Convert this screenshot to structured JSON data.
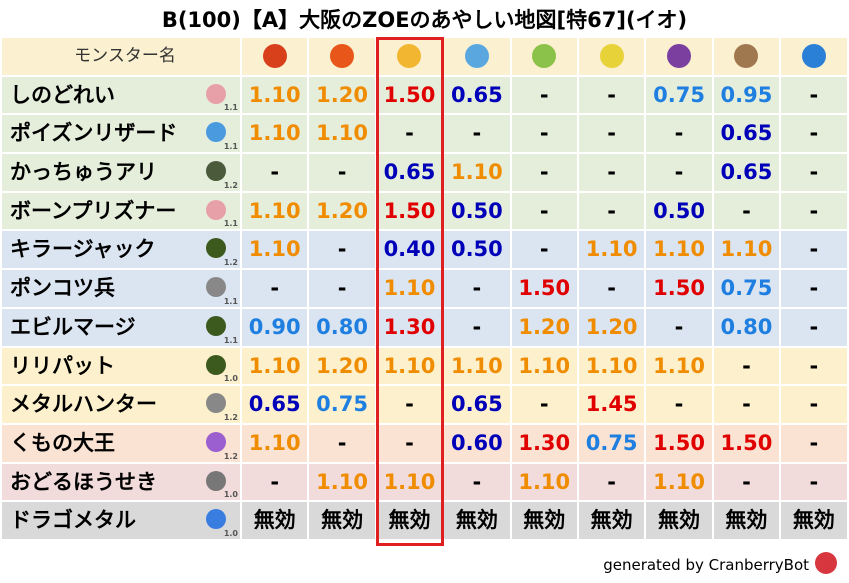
{
  "title": "B(100)【A】大阪のZOEのあやしい地図[特67](イオ)",
  "table": {
    "header": "モンスター名",
    "rows": [
      {
        "name": "しのどれい",
        "level": "1.1",
        "cells": [
          "1.10",
          "1.20",
          "1.50",
          "0.65",
          "-",
          "-",
          "0.75",
          "0.95",
          "-"
        ]
      },
      {
        "name": "ポイズンリザード",
        "level": "1.1",
        "cells": [
          "1.10",
          "1.10",
          "-",
          "-",
          "-",
          "-",
          "-",
          "0.65",
          "-"
        ]
      },
      {
        "name": "かっちゅうアリ",
        "level": "1.2",
        "cells": [
          "-",
          "-",
          "0.65",
          "1.10",
          "-",
          "-",
          "-",
          "0.65",
          "-"
        ]
      },
      {
        "name": "ボーンプリズナー",
        "level": "1.1",
        "cells": [
          "1.10",
          "1.20",
          "1.50",
          "0.50",
          "-",
          "-",
          "0.50",
          "-",
          "-"
        ]
      },
      {
        "name": "キラージャック",
        "level": "1.2",
        "cells": [
          "1.10",
          "-",
          "0.40",
          "0.50",
          "-",
          "1.10",
          "1.10",
          "1.10",
          "-"
        ]
      },
      {
        "name": "ポンコツ兵",
        "level": "1.1",
        "cells": [
          "-",
          "-",
          "1.10",
          "-",
          "1.50",
          "-",
          "1.50",
          "0.75",
          "-"
        ]
      },
      {
        "name": "エビルマージ",
        "level": "1.1",
        "cells": [
          "0.90",
          "0.80",
          "1.30",
          "-",
          "1.20",
          "1.20",
          "-",
          "0.80",
          "-"
        ]
      },
      {
        "name": "リリパット",
        "level": "1.0",
        "cells": [
          "1.10",
          "1.20",
          "1.10",
          "1.10",
          "1.10",
          "1.10",
          "1.10",
          "-",
          "-"
        ]
      },
      {
        "name": "メタルハンター",
        "level": "1.2",
        "cells": [
          "0.65",
          "0.75",
          "-",
          "0.65",
          "-",
          "1.45",
          "-",
          "-",
          "-"
        ]
      },
      {
        "name": "くもの大王",
        "level": "1.2",
        "cells": [
          "1.10",
          "-",
          "-",
          "0.60",
          "1.30",
          "0.75",
          "1.50",
          "1.50",
          "-"
        ]
      },
      {
        "name": "おどるほうせき",
        "level": "1.0",
        "cells": [
          "-",
          "1.10",
          "1.10",
          "-",
          "1.10",
          "-",
          "1.10",
          "-",
          "-"
        ]
      },
      {
        "name": "ドラゴメタル",
        "level": "1.0",
        "cells": [
          "無効",
          "無効",
          "無効",
          "無効",
          "無効",
          "無効",
          "無効",
          "無効",
          "無効"
        ]
      }
    ]
  },
  "footer": "generated by CranberryBot"
}
